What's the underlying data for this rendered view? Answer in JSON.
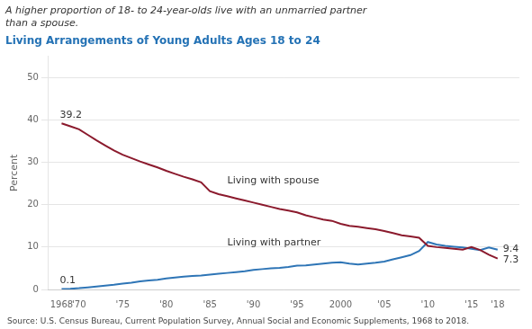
{
  "chart_data": {
    "type": "line",
    "title": "Living Arrangements of Young Adults Ages 18 to 24",
    "subtitle": "A higher proportion of 18- to 24-year-olds live with an unmarried partner\nthan a spouse.",
    "y_label": "Percent",
    "source": "Source: U.S. Census Bureau, Current Population Survey, Annual Social and Economic Supplements, 1968 to 2018.",
    "x": [
      1968,
      1969,
      1970,
      1971,
      1972,
      1973,
      1974,
      1975,
      1976,
      1977,
      1978,
      1979,
      1980,
      1981,
      1982,
      1983,
      1984,
      1985,
      1986,
      1987,
      1988,
      1989,
      1990,
      1991,
      1992,
      1993,
      1994,
      1995,
      1996,
      1997,
      1998,
      1999,
      2000,
      2001,
      2002,
      2003,
      2004,
      2005,
      2006,
      2007,
      2008,
      2009,
      2010,
      2011,
      2012,
      2013,
      2014,
      2015,
      2016,
      2017,
      2018
    ],
    "series": [
      {
        "name": "Living with spouse",
        "color": "#8B1A2D",
        "values": [
          39.2,
          38.5,
          37.8,
          36.5,
          35.2,
          34.0,
          32.8,
          31.8,
          31.0,
          30.2,
          29.5,
          28.8,
          28.0,
          27.3,
          26.6,
          26.0,
          25.3,
          23.2,
          22.5,
          22.0,
          21.5,
          21.0,
          20.5,
          20.0,
          19.5,
          19.0,
          18.6,
          18.2,
          17.5,
          17.0,
          16.5,
          16.2,
          15.5,
          15.0,
          14.8,
          14.5,
          14.2,
          13.8,
          13.3,
          12.8,
          12.5,
          12.2,
          10.3,
          10.0,
          9.8,
          9.6,
          9.4,
          10.0,
          9.3,
          8.2,
          7.3
        ]
      },
      {
        "name": "Living with partner",
        "color": "#2E75B6",
        "values": [
          0.1,
          0.15,
          0.3,
          0.5,
          0.7,
          0.9,
          1.1,
          1.4,
          1.6,
          1.9,
          2.1,
          2.3,
          2.6,
          2.8,
          3.0,
          3.2,
          3.3,
          3.5,
          3.7,
          3.9,
          4.1,
          4.3,
          4.6,
          4.8,
          5.0,
          5.1,
          5.3,
          5.6,
          5.7,
          5.9,
          6.1,
          6.3,
          6.4,
          6.1,
          5.9,
          6.1,
          6.3,
          6.6,
          7.1,
          7.6,
          8.1,
          9.1,
          11.2,
          10.6,
          10.3,
          10.1,
          9.9,
          9.6,
          9.3,
          9.9,
          9.4
        ]
      }
    ],
    "xlim": [
      1966.5,
      2020.5
    ],
    "xticks": [
      1968,
      {
        "value": 1970,
        "label": "'70"
      },
      {
        "value": 1975,
        "label": "'75"
      },
      {
        "value": 1980,
        "label": "'80"
      },
      {
        "value": 1985,
        "label": "'85"
      },
      {
        "value": 1990,
        "label": "'90"
      },
      {
        "value": 1995,
        "label": "'95"
      },
      2000,
      {
        "value": 2005,
        "label": "'05"
      },
      {
        "value": 2010,
        "label": "'10"
      },
      {
        "value": 2015,
        "label": "'15"
      },
      {
        "value": 2018,
        "label": "'18"
      }
    ],
    "ylim": [
      0,
      55
    ],
    "yticks": [
      0,
      10,
      20,
      30,
      40,
      50
    ],
    "grid": true,
    "annotations": [
      {
        "text": "39.2",
        "x": 1968,
        "y": 39.2
      },
      {
        "text": "0.1",
        "x": 1968,
        "y": 0.1
      },
      {
        "text": "7.3",
        "x": 2018,
        "y": 7.3
      },
      {
        "text": "9.4",
        "x": 2018,
        "y": 9.4
      },
      {
        "text": "Living with spouse",
        "x": 1987,
        "y": 24.5
      },
      {
        "text": "Living with partner",
        "x": 1987,
        "y": 9.8
      }
    ]
  }
}
